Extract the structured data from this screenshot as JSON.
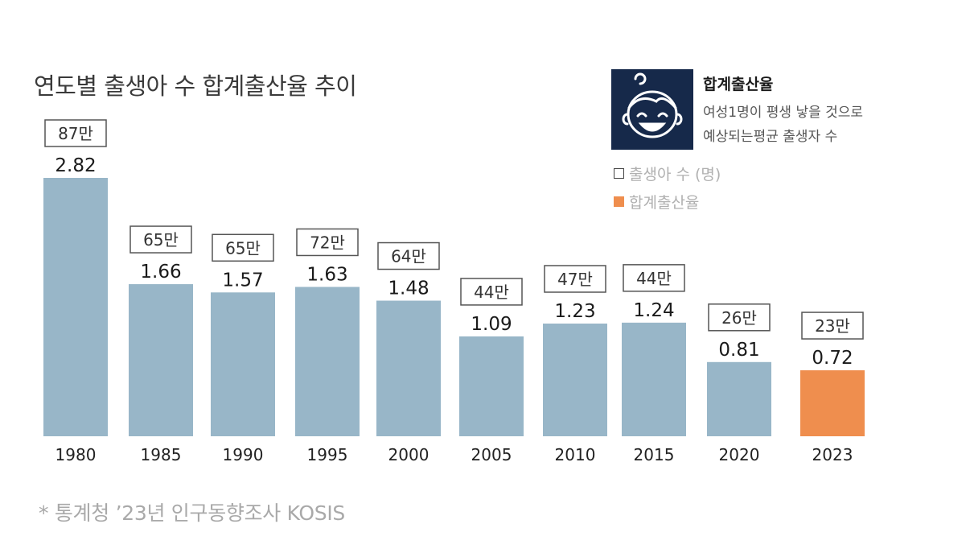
{
  "header": {
    "title": "연도별 출생아 수 합계출산율 추이"
  },
  "info": {
    "icon": "baby-face-icon",
    "title": "합계출산율",
    "desc_line1": "여성1명이 평생 낳을 것으로",
    "desc_line2": "예상되는평균 출생자 수"
  },
  "legend": {
    "births": "출생아 수 (명)",
    "rate": "합계출산율"
  },
  "footer": {
    "source": "* 통계청 ’23년 인구동향조사 KOSIS"
  },
  "colors": {
    "bar": "#98b6c8",
    "highlight": "#ef8e4e",
    "icon_bg": "#16294a"
  },
  "chart_data": {
    "type": "bar",
    "categories": [
      "1980",
      "1985",
      "1990",
      "1995",
      "2000",
      "2005",
      "2010",
      "2015",
      "2020",
      "2023"
    ],
    "values": [
      2.82,
      1.66,
      1.57,
      1.63,
      1.48,
      1.09,
      1.23,
      1.24,
      0.81,
      0.72
    ],
    "value_labels": [
      "2.82",
      "1.66",
      "1.57",
      "1.63",
      "1.48",
      "1.09",
      "1.23",
      "1.24",
      "0.81",
      "0.72"
    ],
    "births_labels": [
      "87만",
      "65만",
      "65만",
      "72만",
      "64만",
      "44만",
      "47만",
      "44만",
      "26만",
      "23만"
    ],
    "highlight_index": 9,
    "ylim": [
      0,
      3.0
    ],
    "grid": false,
    "title": "연도별 출생아 수 합계출산율 추이",
    "xlabel": "",
    "ylabel": ""
  }
}
